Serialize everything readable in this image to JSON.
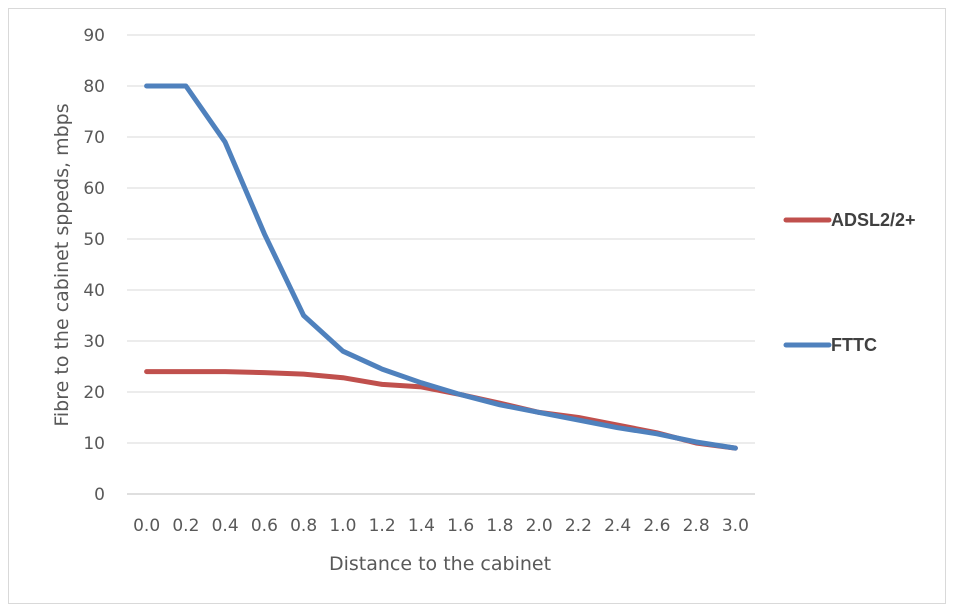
{
  "chart_data": {
    "type": "line",
    "title": "",
    "xlabel": "Distance to the cabinet",
    "ylabel": "Fibre to the cabinet sppeds, mbps",
    "x": [
      "0.0",
      "0.2",
      "0.4",
      "0.6",
      "0.8",
      "1.0",
      "1.2",
      "1.4",
      "1.6",
      "1.8",
      "2.0",
      "2.2",
      "2.4",
      "2.6",
      "2.8",
      "3.0"
    ],
    "ylim": [
      0,
      90
    ],
    "yticks": [
      "0",
      "10",
      "20",
      "30",
      "40",
      "50",
      "60",
      "70",
      "80",
      "90"
    ],
    "grid": true,
    "legend_position": "right",
    "series": [
      {
        "name": "ADSL2/2+",
        "color": "#c0504d",
        "values": [
          24,
          24,
          24,
          23.8,
          23.5,
          22.8,
          21.5,
          21,
          19.5,
          17.8,
          16,
          15,
          13.5,
          12,
          10,
          9
        ]
      },
      {
        "name": "FTTC",
        "color": "#4f81bd",
        "values": [
          80,
          80,
          69,
          51,
          35,
          28,
          24.5,
          21.8,
          19.5,
          17.5,
          16,
          14.5,
          13,
          11.8,
          10.2,
          9
        ]
      }
    ]
  }
}
